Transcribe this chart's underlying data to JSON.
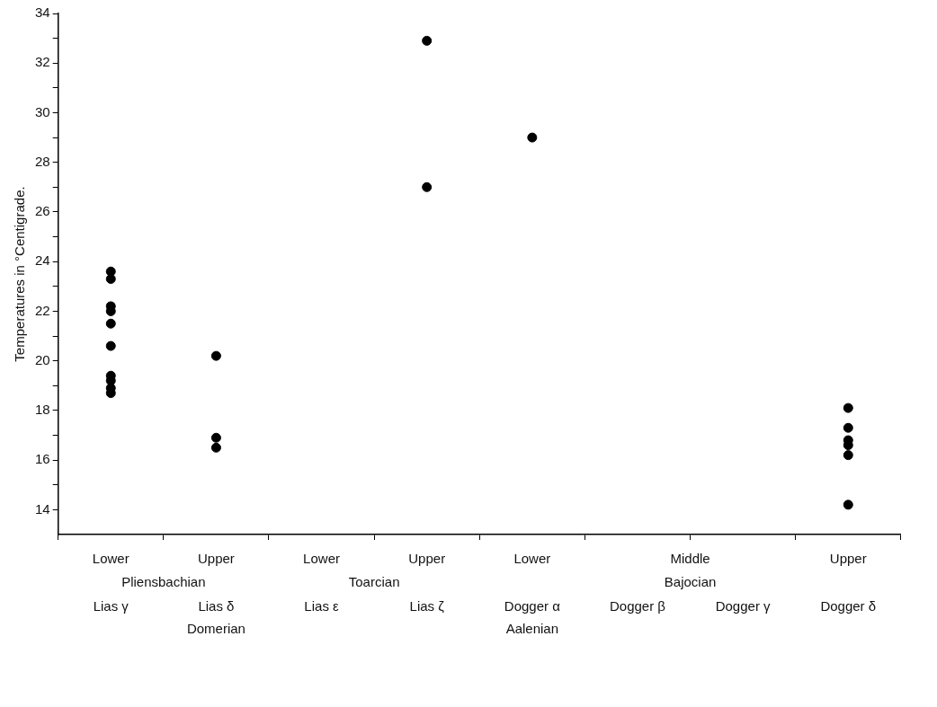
{
  "chart_data": {
    "type": "scatter",
    "ylabel": "Temperatures in °Centigrade.",
    "categories": [
      "Lias γ",
      "Lias δ",
      "Lias ε",
      "Lias ζ",
      "Dogger α",
      "Dogger β",
      "Dogger γ",
      "Dogger δ"
    ],
    "series": [
      {
        "color": "#000000",
        "type": "scatter",
        "x": [
          "Lias γ",
          "Lias γ",
          "Lias γ",
          "Lias γ",
          "Lias γ",
          "Lias γ",
          "Lias γ",
          "Lias γ",
          "Lias γ",
          "Lias γ",
          "Lias δ",
          "Lias δ",
          "Lias δ",
          "Lias ζ",
          "Lias ζ",
          "Dogger α",
          "Dogger δ",
          "Dogger δ",
          "Dogger δ",
          "Dogger δ",
          "Dogger δ",
          "Dogger δ"
        ],
        "values": [
          23.6,
          23.3,
          22.2,
          22.0,
          21.5,
          20.6,
          19.4,
          19.2,
          18.9,
          18.7,
          20.2,
          16.9,
          16.5,
          32.9,
          27.0,
          29.0,
          18.1,
          17.3,
          16.8,
          16.6,
          16.2,
          14.2
        ]
      }
    ],
    "ylim": [
      13,
      34
    ],
    "yticks": [
      14,
      {
        "value": 15,
        "label": null
      },
      16,
      {
        "value": 17,
        "label": null
      },
      18,
      {
        "value": 19,
        "label": null
      },
      20,
      {
        "value": 21,
        "label": null
      },
      22,
      {
        "value": 23,
        "label": null
      },
      24,
      {
        "value": 25,
        "label": null
      },
      26,
      {
        "value": 27,
        "label": null
      },
      28,
      {
        "value": 29,
        "label": null
      },
      30,
      {
        "value": 31,
        "label": null
      },
      32,
      {
        "value": 33,
        "label": null
      },
      34
    ],
    "annotations": [
      "Lower",
      "Upper",
      "Lower",
      "Upper",
      "Lower",
      "Middle",
      "Upper",
      "Pliensbachian",
      "Toarcian",
      "Bajocian",
      "Domerian",
      "Aalenian"
    ],
    "grid": false,
    "legend": false,
    "marker": "circle"
  }
}
